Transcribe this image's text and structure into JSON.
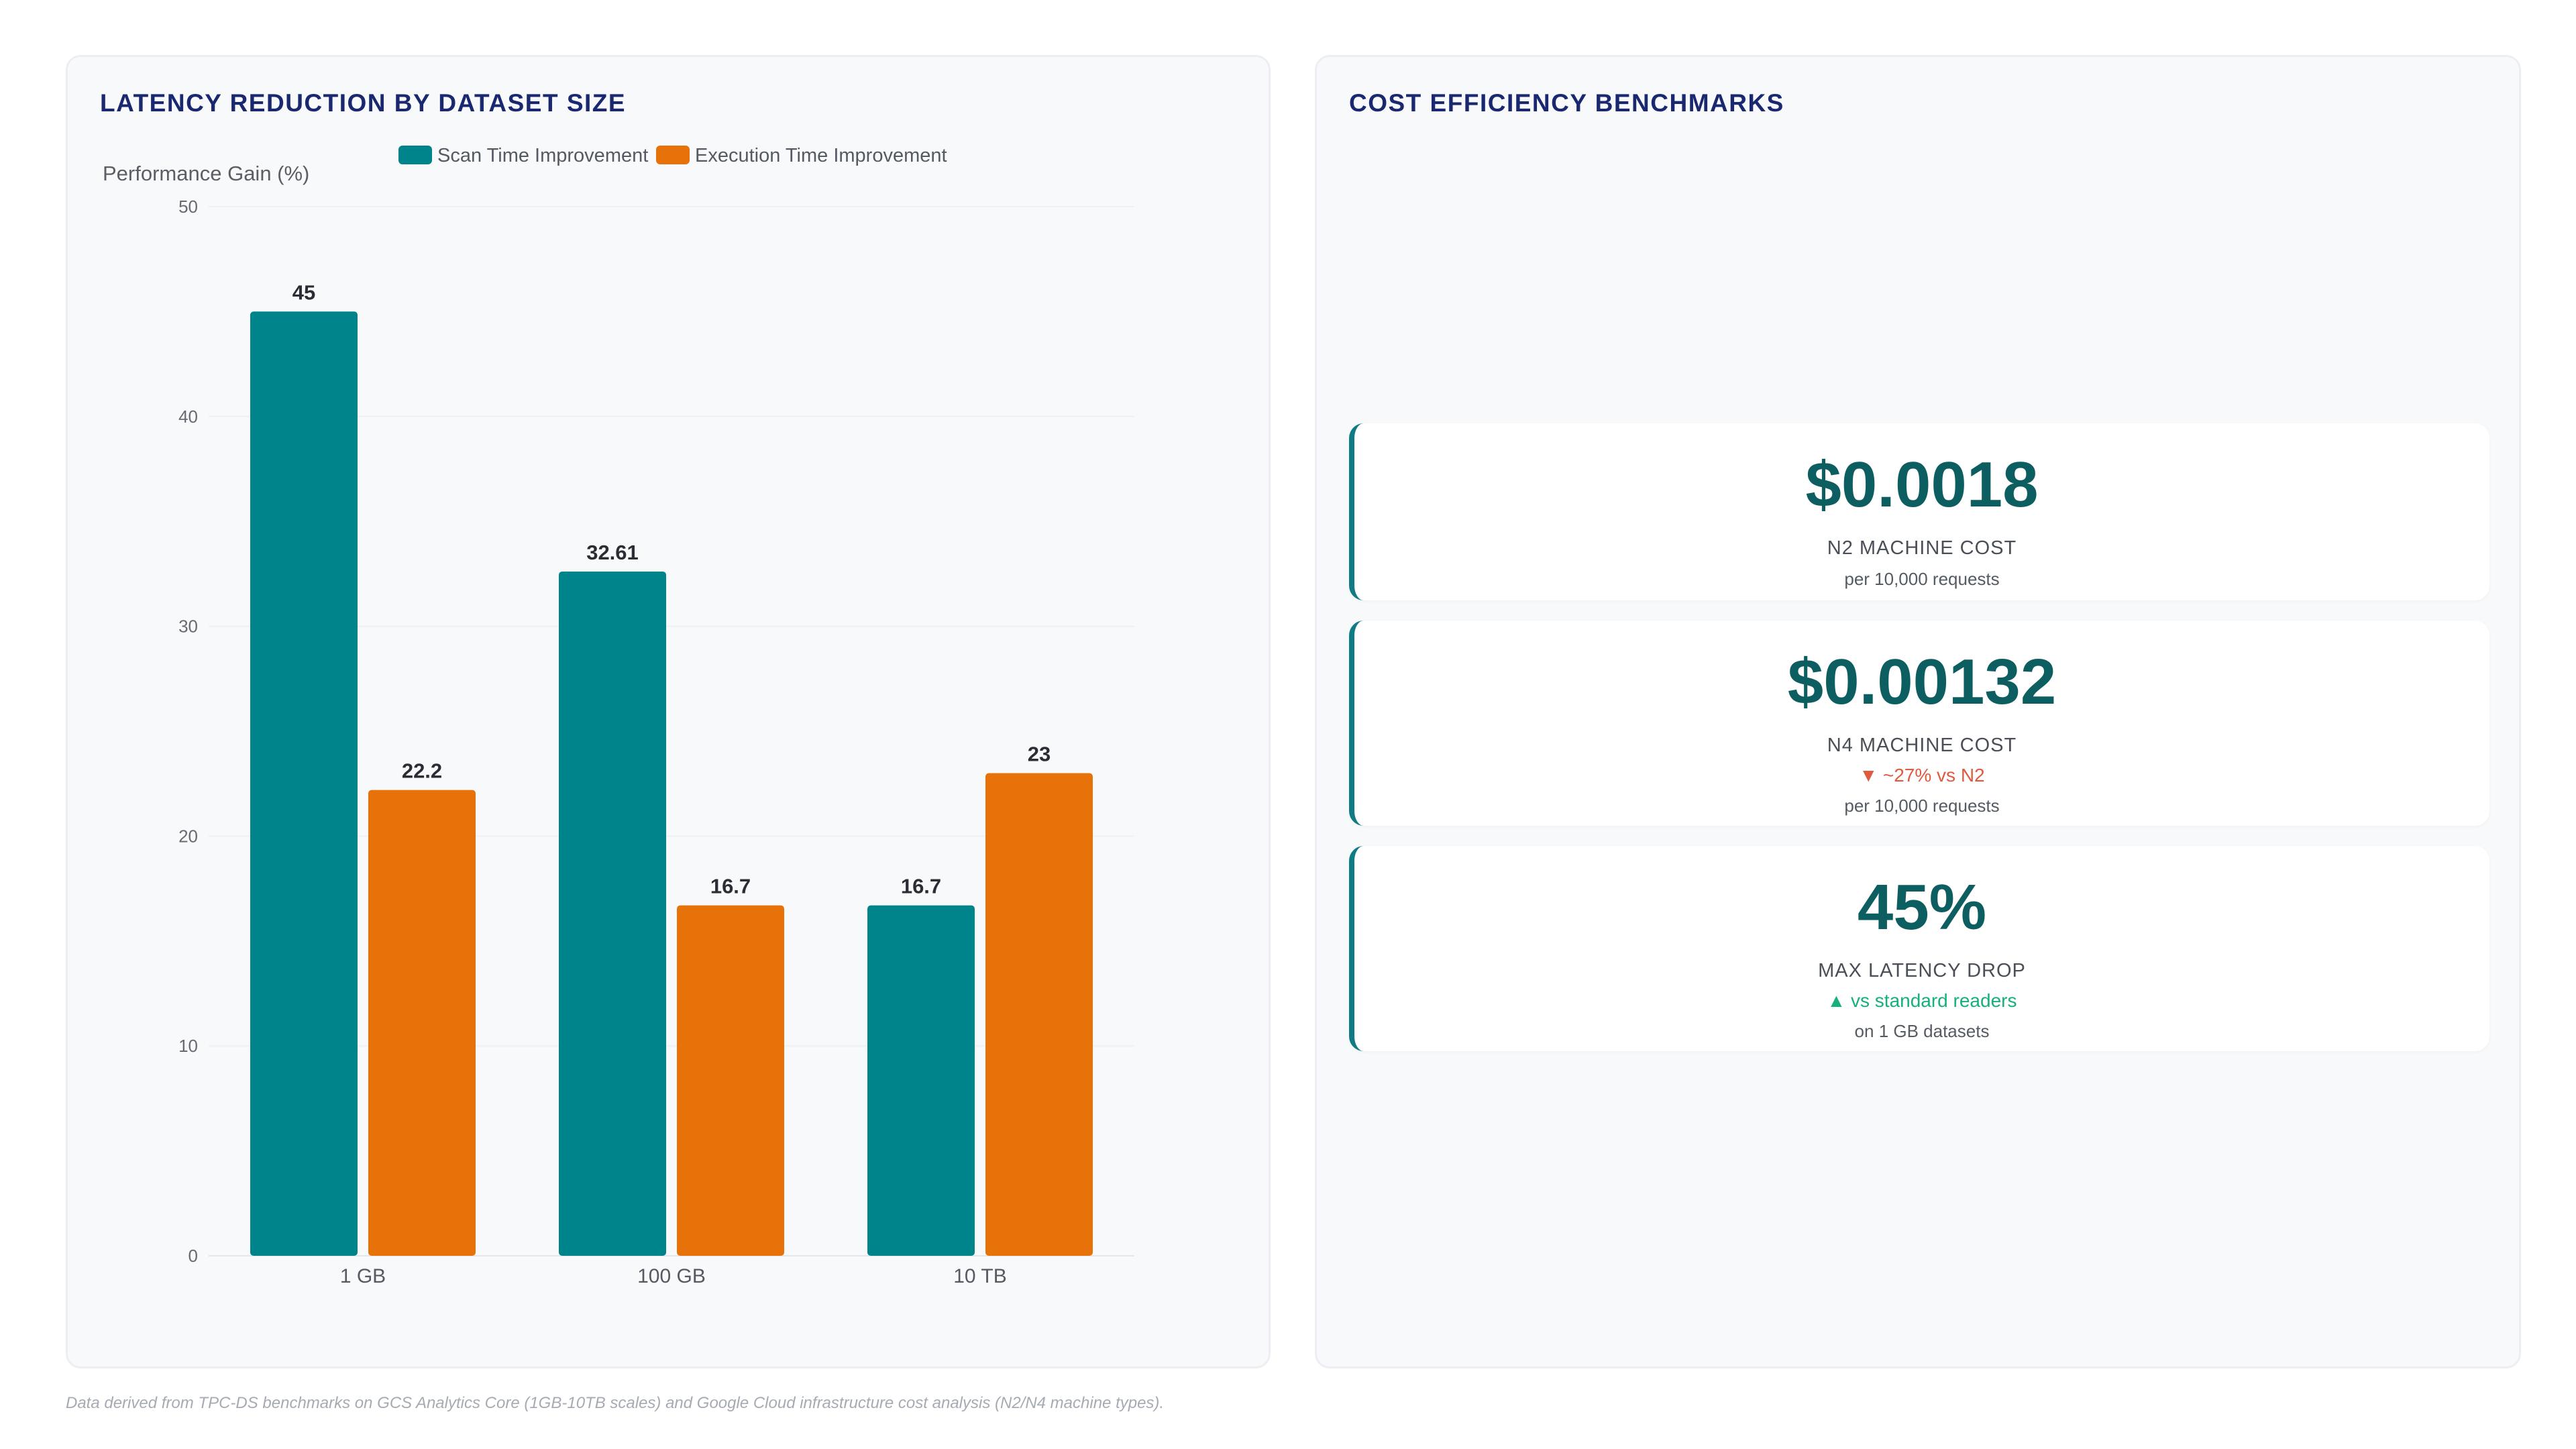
{
  "left_panel": {
    "title": "LATENCY REDUCTION BY DATASET SIZE"
  },
  "right_panel": {
    "title": "COST EFFICIENCY BENCHMARKS",
    "cards": [
      {
        "value": "$0.0018",
        "label": "N2 MACHINE COST",
        "delta": "",
        "sub": "per 10,000 requests"
      },
      {
        "value": "$0.00132",
        "label": "N4 MACHINE COST",
        "delta": "▼ ~27% vs N2",
        "delta_direction": "down",
        "sub": "per 10,000 requests"
      },
      {
        "value": "45%",
        "label": "MAX LATENCY DROP",
        "delta": "▲ vs standard readers",
        "delta_direction": "up",
        "sub": "on 1 GB datasets"
      }
    ]
  },
  "footnote": "Data derived from TPC-DS benchmarks on GCS Analytics Core (1GB-10TB scales) and Google Cloud infrastructure cost analysis (N2/N4 machine types).",
  "colors": {
    "scan": "#00848c",
    "execution": "#e8720a",
    "title": "#1a2870",
    "accent": "#0f7c84"
  },
  "chart_data": {
    "type": "bar",
    "title": "LATENCY REDUCTION BY DATASET SIZE",
    "ylabel": "Performance Gain (%)",
    "xlabel": "",
    "categories": [
      "1 GB",
      "100 GB",
      "10 TB"
    ],
    "series": [
      {
        "name": "Scan Time Improvement",
        "values": [
          45,
          32.61,
          16.7
        ],
        "color": "#00848c"
      },
      {
        "name": "Execution Time Improvement",
        "values": [
          22.2,
          16.7,
          23
        ],
        "color": "#e8720a"
      }
    ],
    "ylim": [
      0,
      50
    ],
    "yticks": [
      0,
      10,
      20,
      30,
      40,
      50
    ],
    "grid": true,
    "legend": "top-center",
    "data_labels": true
  }
}
